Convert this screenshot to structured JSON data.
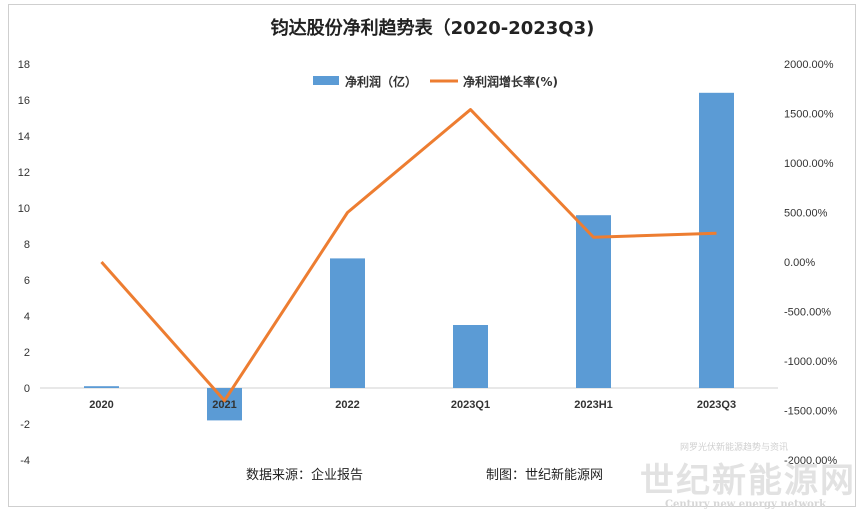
{
  "chart_data": {
    "type": "bar",
    "title": "钧达股份净利趋势表（2020-2023Q3)",
    "categories": [
      "2020",
      "2021",
      "2022",
      "2023Q1",
      "2023H1",
      "2023Q3"
    ],
    "series": [
      {
        "name": "净利润（亿）",
        "type": "bar",
        "axis": "left",
        "color": "#5B9BD5",
        "values": [
          0.1,
          -1.8,
          7.2,
          3.5,
          9.6,
          16.4
        ]
      },
      {
        "name": "净利润增长率(%)",
        "type": "line",
        "axis": "right",
        "color": "#ED7D31",
        "values": [
          0,
          -1400,
          500,
          1540,
          250,
          290
        ]
      }
    ],
    "ylim_left": [
      -4,
      18
    ],
    "yticks_left": [
      "18",
      "16",
      "14",
      "12",
      "10",
      "8",
      "6",
      "4",
      "2",
      "0",
      "-2",
      "-4"
    ],
    "ylim_right": [
      -2000,
      2000
    ],
    "yticks_right": [
      "2000.00%",
      "1500.00%",
      "1000.00%",
      "500.00%",
      "0.00%",
      "-500.00%",
      "-1000.00%",
      "-1500.00%",
      "-2000.00%"
    ],
    "legend_position": "top-center",
    "grid": false
  },
  "footer": {
    "source": "数据来源：企业报告",
    "credit": "制图：世纪新能源网"
  },
  "watermark": {
    "top_line": "网罗光伏新能源趋势与资讯",
    "big": "世纪新能源网",
    "bottom_line": "Century new energy network"
  }
}
